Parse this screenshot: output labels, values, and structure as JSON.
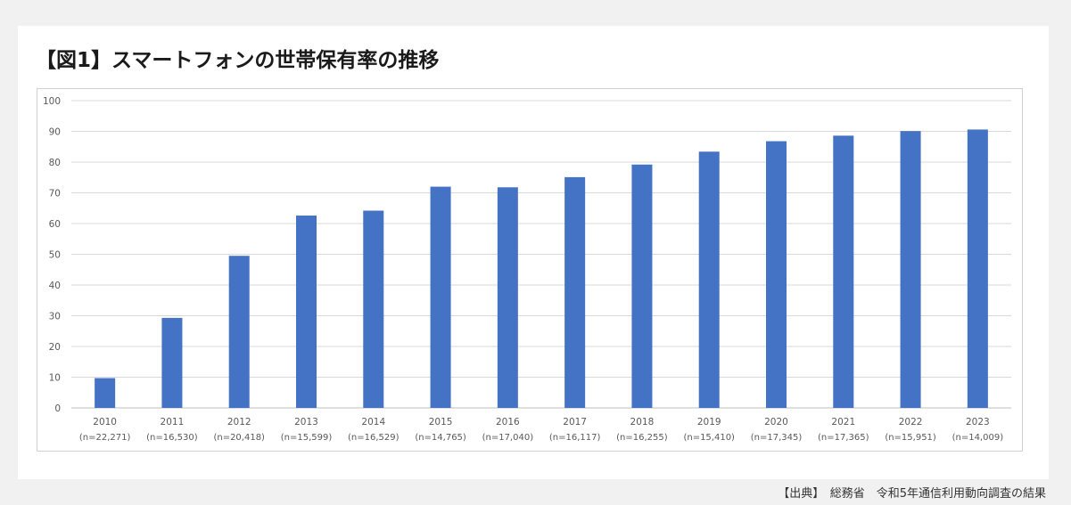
{
  "title": "【図1】スマートフォンの世帯保有率の推移",
  "source": "【出典】　総務省　令和5年通信利用動向調査の結果",
  "chart_data": {
    "type": "bar",
    "title": "【図1】スマートフォンの世帯保有率の推移",
    "xlabel": "",
    "ylabel": "",
    "ylim": [
      0,
      100
    ],
    "yticks": [
      0,
      10,
      20,
      30,
      40,
      50,
      60,
      70,
      80,
      90,
      100
    ],
    "grid": true,
    "bar_color": "#4472c4",
    "categories": [
      "2010",
      "2011",
      "2012",
      "2013",
      "2014",
      "2015",
      "2016",
      "2017",
      "2018",
      "2019",
      "2020",
      "2021",
      "2022",
      "2023"
    ],
    "sample_sizes": [
      "(n=22,271)",
      "(n=16,530)",
      "(n=20,418)",
      "(n=15,599)",
      "(n=16,529)",
      "(n=14,765)",
      "(n=17,040)",
      "(n=16,117)",
      "(n=16,255)",
      "(n=15,410)",
      "(n=17,345)",
      "(n=17,365)",
      "(n=15,951)",
      "(n=14,009)"
    ],
    "values": [
      9.7,
      29.3,
      49.5,
      62.6,
      64.2,
      72.0,
      71.8,
      75.1,
      79.2,
      83.4,
      86.8,
      88.6,
      90.1,
      90.6
    ]
  }
}
